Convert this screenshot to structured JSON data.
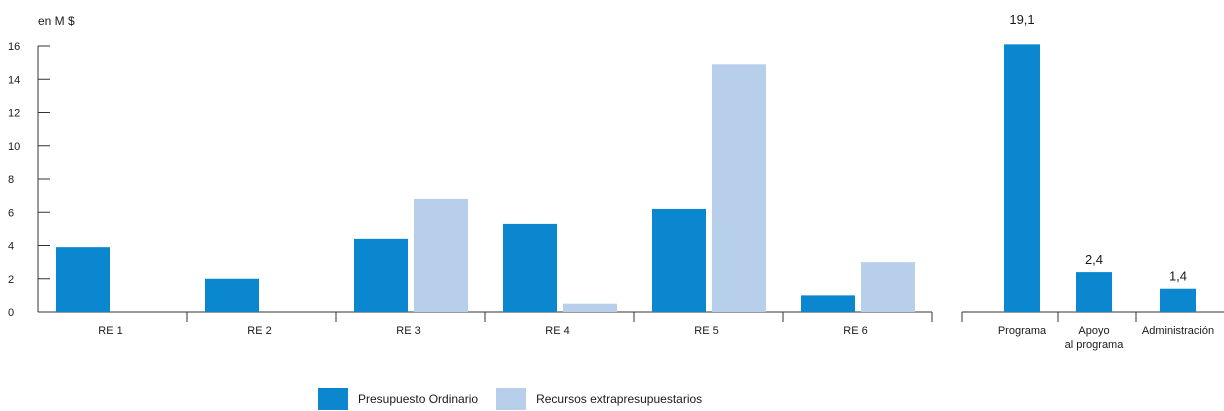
{
  "unit_label": "en M $",
  "colors": {
    "ordinario": "#0b87d0",
    "extra": "#b8cfeb"
  },
  "chart_data": [
    {
      "type": "bar",
      "categories": [
        "RE 1",
        "RE 2",
        "RE 3",
        "RE 4",
        "RE 5",
        "RE 6"
      ],
      "series": [
        {
          "name": "Presupuesto Ordinario",
          "values": [
            3.9,
            2.0,
            4.4,
            5.3,
            6.2,
            1.0
          ]
        },
        {
          "name": "Recursos extrapresupuestarios",
          "values": [
            0,
            0,
            6.8,
            0.5,
            14.9,
            3.0
          ]
        }
      ],
      "ylim": [
        0,
        16
      ],
      "yticks": [
        0,
        2,
        4,
        6,
        8,
        10,
        12,
        14,
        16
      ],
      "ylabel": "en M $"
    },
    {
      "type": "bar",
      "categories": [
        "Programa",
        "Apoyo\nal programa",
        "Administración"
      ],
      "series": [
        {
          "name": "Presupuesto Ordinario",
          "values": [
            19.1,
            2.4,
            1.4
          ]
        }
      ],
      "data_labels": [
        "19,1",
        "2,4",
        "1,4"
      ]
    }
  ],
  "legend": [
    {
      "label": "Presupuesto Ordinario",
      "color_key": "ordinario"
    },
    {
      "label": "Recursos extrapresupuestarios",
      "color_key": "extra"
    }
  ]
}
